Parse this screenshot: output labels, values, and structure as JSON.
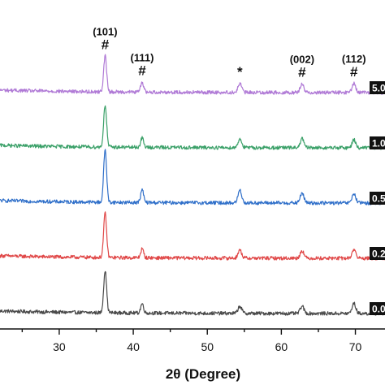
{
  "chart_data": {
    "type": "line",
    "title": "",
    "xlabel": "2θ (Degree)",
    "ylabel": "",
    "xlim": [
      22,
      74
    ],
    "xticks": [
      30,
      40,
      50,
      60,
      70
    ],
    "grid": false,
    "legend": "right edge, label at end of each trace",
    "series": [
      {
        "name": "0.0",
        "color": "#4a4a4a",
        "offset": 0,
        "peaks": [
          [
            36.2,
            1.0
          ],
          [
            41.2,
            0.22
          ],
          [
            54.4,
            0.17
          ],
          [
            62.8,
            0.17
          ],
          [
            69.8,
            0.24
          ]
        ]
      },
      {
        "name": "0.2",
        "color": "#e04848",
        "offset": 1,
        "peaks": [
          [
            36.2,
            1.05
          ],
          [
            41.2,
            0.21
          ],
          [
            54.4,
            0.19
          ],
          [
            62.8,
            0.18
          ],
          [
            69.8,
            0.21
          ]
        ]
      },
      {
        "name": "0.5",
        "color": "#2f6fc9",
        "offset": 2,
        "peaks": [
          [
            36.2,
            1.25
          ],
          [
            41.2,
            0.3
          ],
          [
            54.4,
            0.3
          ],
          [
            62.8,
            0.24
          ],
          [
            69.8,
            0.22
          ]
        ]
      },
      {
        "name": "1.0",
        "color": "#3aa068",
        "offset": 3,
        "peaks": [
          [
            36.2,
            1.0
          ],
          [
            41.2,
            0.22
          ],
          [
            54.4,
            0.21
          ],
          [
            62.8,
            0.21
          ],
          [
            69.8,
            0.19
          ]
        ]
      },
      {
        "name": "5.0",
        "color": "#b07ad6",
        "offset": 4,
        "peaks": [
          [
            36.2,
            0.85
          ],
          [
            41.2,
            0.24
          ],
          [
            54.4,
            0.21
          ],
          [
            62.8,
            0.2
          ],
          [
            69.8,
            0.21
          ]
        ]
      }
    ],
    "annotations": [
      {
        "x": 36.2,
        "label": "(101)",
        "mark": "#"
      },
      {
        "x": 41.2,
        "label": "(111)",
        "mark": "#"
      },
      {
        "x": 54.4,
        "label": "",
        "mark": "*"
      },
      {
        "x": 62.8,
        "label": "(002)",
        "mark": "#"
      },
      {
        "x": 69.8,
        "label": "(112)",
        "mark": "#"
      }
    ]
  }
}
